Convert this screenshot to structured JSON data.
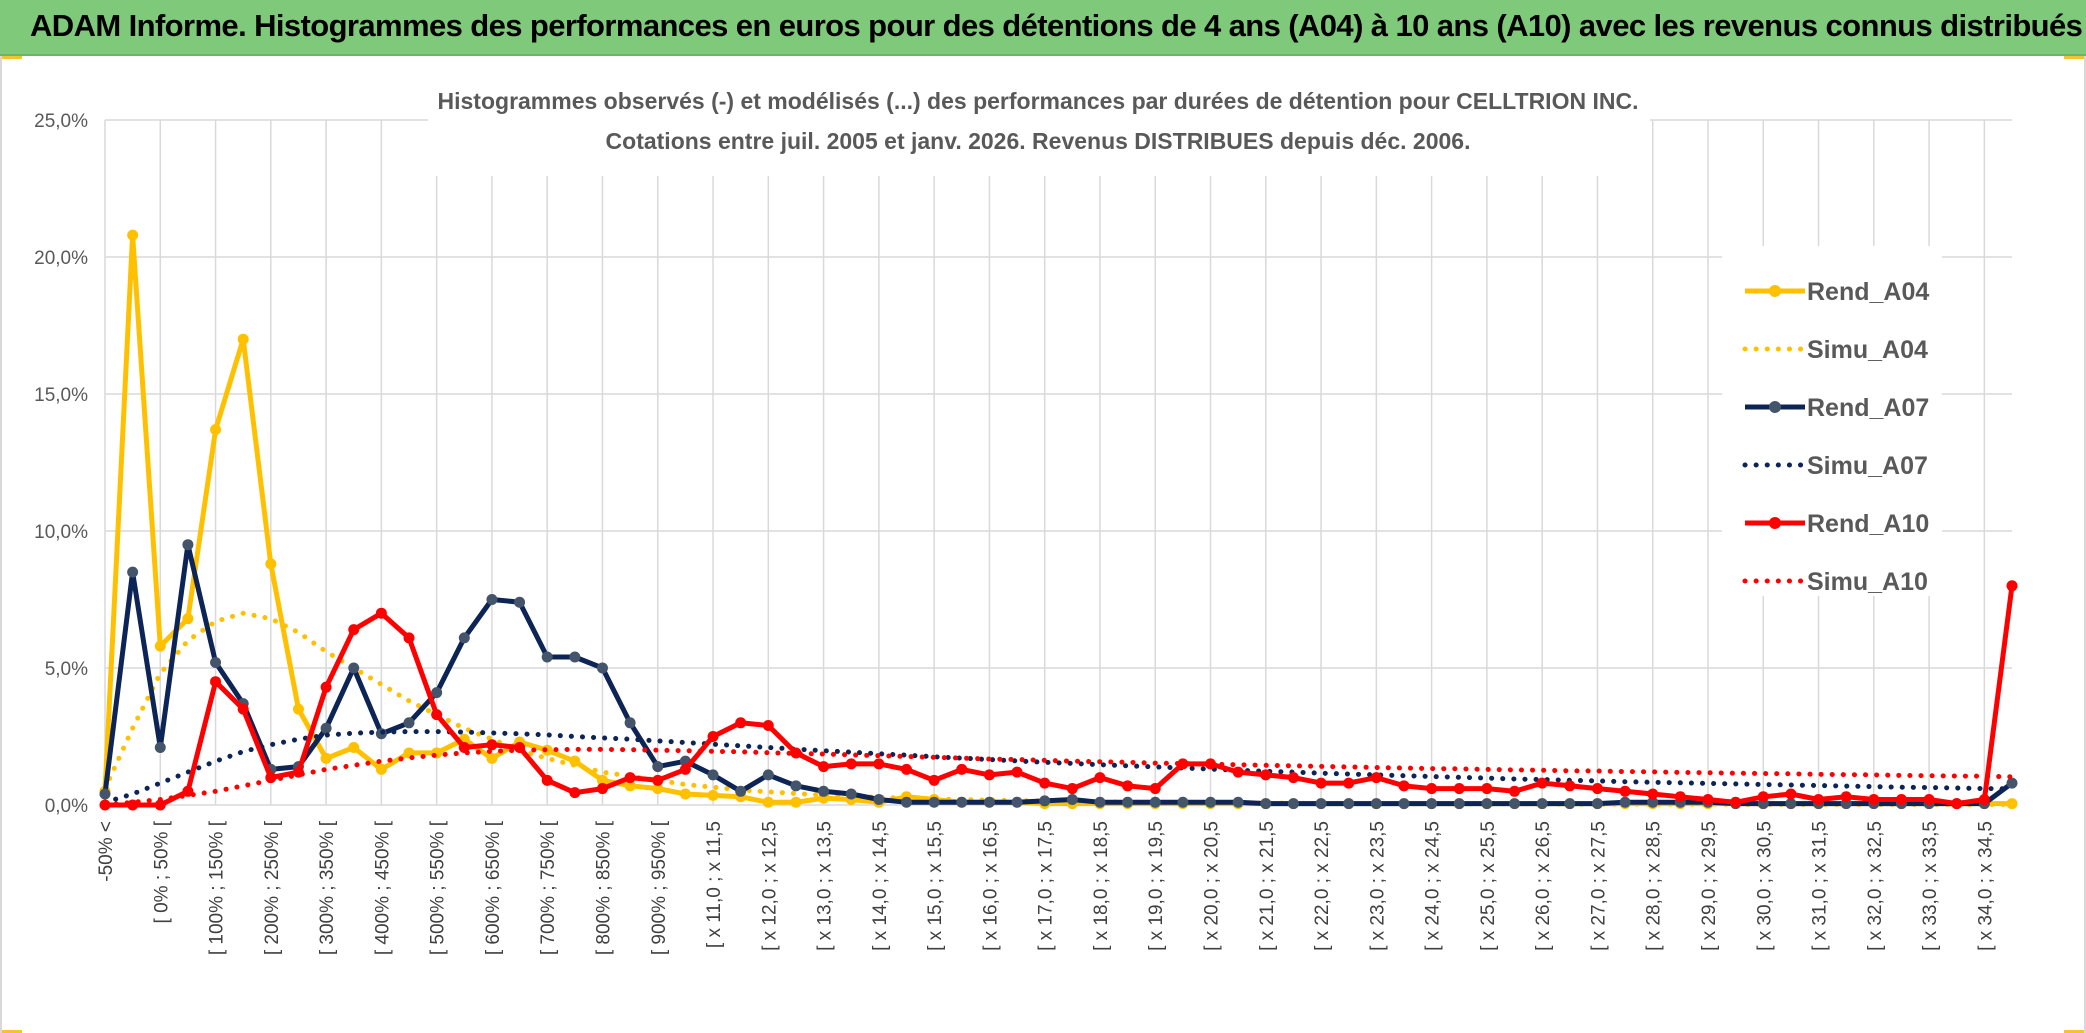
{
  "header": {
    "title": "ADAM Informe. Histogrammes des performances en euros pour des détentions de 4 ans (A04) à 10 ans (A10) avec les revenus connus distribués"
  },
  "chart_data": {
    "type": "line",
    "title": "Histogrammes observés (-) et modélisés (...) des performances par durées de détention pour CELLTRION INC.",
    "subtitle": "Cotations entre juil. 2005 et janv. 2026. Revenus DISTRIBUES depuis déc. 2006.",
    "xlabel": "",
    "ylabel": "",
    "ylim": [
      0,
      25
    ],
    "grid": true,
    "legend_position": "right",
    "y_ticks": [
      "0,0%",
      "5,0%",
      "10,0%",
      "15,0%",
      "20,0%",
      "25,0%"
    ],
    "x_tick_labels": [
      "-50% <",
      "[ 0% ; 50% [",
      "[ 100% ; 150% [",
      "[ 200% ; 250% [",
      "[ 300% ; 350% [",
      "[ 400% ; 450% [",
      "[ 500% ; 550% [",
      "[ 600% ; 650% [",
      "[ 700% ; 750% [",
      "[ 800% ; 850% [",
      "[ 900% ; 950% [",
      "[ x 11,0 ; x 11,5",
      "[ x 12,0 ; x 12,5",
      "[ x 13,0 ; x 13,5",
      "[ x 14,0 ; x 14,5",
      "[ x 15,0 ; x 15,5",
      "[ x 16,0 ; x 16,5",
      "[ x 17,0 ; x 17,5",
      "[ x 18,0 ; x 18,5",
      "[ x 19,0 ; x 19,5",
      "[ x 20,0 ; x 20,5",
      "[ x 21,0 ; x 21,5",
      "[ x 22,0 ; x 22,5",
      "[ x 23,0 ; x 23,5",
      "[ x 24,0 ; x 24,5",
      "[ x 25,0 ; x 25,5",
      "[ x 26,0 ; x 26,5",
      "[ x 27,0 ; x 27,5",
      "[ x 28,0 ; x 28,5",
      "[ x 29,0 ; x 29,5",
      "[ x 30,0 ; x 30,5",
      "[ x 31,0 ; x 31,5",
      "[ x 32,0 ; x 32,5",
      "[ x 33,0 ; x 33,5",
      "[ x 34,0 ; x 34,5"
    ],
    "series": [
      {
        "name": "Rend_A04",
        "color": "#ffc000",
        "style": "solid",
        "values": [
          0.5,
          20.8,
          5.8,
          6.8,
          13.7,
          17.0,
          8.8,
          3.5,
          1.7,
          2.1,
          1.3,
          1.9,
          1.9,
          2.4,
          1.7,
          2.3,
          2.0,
          1.6,
          0.9,
          0.7,
          0.6,
          0.4,
          0.35,
          0.3,
          0.1,
          0.1,
          0.25,
          0.2,
          0.1,
          0.3,
          0.2,
          0.1,
          0.1,
          0.1,
          0.05,
          0.05,
          0.05,
          0.05,
          0.05,
          0.05,
          0.05,
          0.05,
          0.05,
          0.05,
          0.05,
          0.05,
          0.05,
          0.05,
          0.05,
          0.05,
          0.05,
          0.05,
          0.05,
          0.05,
          0.05,
          0.05,
          0.05,
          0.05,
          0.05,
          0.05,
          0.05,
          0.05,
          0.05,
          0.05,
          0.05,
          0.05,
          0.05,
          0.05,
          0.05,
          0.05
        ]
      },
      {
        "name": "Simu_A04",
        "color": "#ffc000",
        "style": "dotted",
        "values": [
          0.6,
          2.8,
          4.8,
          6.0,
          6.7,
          7.0,
          6.8,
          6.3,
          5.6,
          5.0,
          4.4,
          3.8,
          3.3,
          2.8,
          2.4,
          2.0,
          1.7,
          1.45,
          1.2,
          1.05,
          0.9,
          0.75,
          0.65,
          0.55,
          0.48,
          0.42,
          0.36,
          0.32,
          0.28,
          0.25,
          0.22,
          0.2,
          0.18,
          0.16,
          0.14,
          0.13,
          0.12,
          0.11,
          0.1,
          0.09,
          0.08,
          0.08,
          0.07,
          0.07,
          0.06,
          0.06,
          0.05,
          0.05,
          0.05,
          0.04,
          0.04,
          0.04,
          0.04,
          0.03,
          0.03,
          0.03,
          0.03,
          0.03,
          0.03,
          0.02,
          0.02,
          0.02,
          0.02,
          0.02,
          0.02,
          0.02,
          0.02,
          0.02,
          0.02,
          0.02
        ]
      },
      {
        "name": "Rend_A07",
        "color": "#0d2456",
        "style": "solid",
        "values": [
          0.4,
          8.5,
          2.1,
          9.5,
          5.2,
          3.7,
          1.3,
          1.4,
          2.8,
          5.0,
          2.6,
          3.0,
          4.1,
          6.1,
          7.5,
          7.4,
          5.4,
          5.4,
          5.0,
          3.0,
          1.4,
          1.6,
          1.1,
          0.5,
          1.1,
          0.7,
          0.5,
          0.4,
          0.2,
          0.1,
          0.1,
          0.1,
          0.1,
          0.1,
          0.15,
          0.2,
          0.1,
          0.1,
          0.1,
          0.1,
          0.1,
          0.1,
          0.05,
          0.05,
          0.05,
          0.05,
          0.05,
          0.05,
          0.05,
          0.05,
          0.05,
          0.05,
          0.05,
          0.05,
          0.05,
          0.1,
          0.1,
          0.1,
          0.1,
          0.05,
          0.05,
          0.05,
          0.05,
          0.05,
          0.05,
          0.05,
          0.05,
          0.05,
          0.05,
          0.8
        ]
      },
      {
        "name": "Simu_A07",
        "color": "#0d2456",
        "style": "dotted",
        "values": [
          0.1,
          0.4,
          0.8,
          1.2,
          1.6,
          1.95,
          2.2,
          2.4,
          2.55,
          2.62,
          2.66,
          2.68,
          2.68,
          2.66,
          2.63,
          2.6,
          2.56,
          2.5,
          2.45,
          2.4,
          2.34,
          2.28,
          2.22,
          2.16,
          2.1,
          2.04,
          1.98,
          1.93,
          1.87,
          1.82,
          1.76,
          1.71,
          1.66,
          1.61,
          1.56,
          1.52,
          1.47,
          1.43,
          1.39,
          1.35,
          1.31,
          1.27,
          1.23,
          1.2,
          1.16,
          1.13,
          1.1,
          1.07,
          1.04,
          1.01,
          0.98,
          0.95,
          0.93,
          0.9,
          0.88,
          0.85,
          0.83,
          0.81,
          0.79,
          0.77,
          0.75,
          0.73,
          0.71,
          0.69,
          0.67,
          0.65,
          0.64,
          0.62,
          0.6,
          0.59
        ]
      },
      {
        "name": "Rend_A10",
        "color": "#ff0000",
        "style": "solid",
        "values": [
          0.0,
          0.0,
          0.0,
          0.5,
          4.5,
          3.5,
          1.0,
          1.2,
          4.3,
          6.4,
          7.0,
          6.1,
          3.3,
          2.1,
          2.2,
          2.1,
          0.9,
          0.45,
          0.6,
          1.0,
          0.9,
          1.3,
          2.5,
          3.0,
          2.9,
          1.9,
          1.4,
          1.5,
          1.5,
          1.3,
          0.9,
          1.3,
          1.1,
          1.2,
          0.8,
          0.6,
          1.0,
          0.7,
          0.6,
          1.5,
          1.5,
          1.2,
          1.1,
          1.0,
          0.8,
          0.8,
          1.0,
          0.7,
          0.6,
          0.6,
          0.6,
          0.5,
          0.8,
          0.7,
          0.6,
          0.5,
          0.4,
          0.3,
          0.2,
          0.1,
          0.3,
          0.4,
          0.2,
          0.3,
          0.2,
          0.2,
          0.2,
          0.05,
          0.2,
          8.0
        ]
      },
      {
        "name": "Simu_A10",
        "color": "#ff0000",
        "style": "dotted",
        "values": [
          0.0,
          0.1,
          0.2,
          0.35,
          0.5,
          0.7,
          0.9,
          1.1,
          1.3,
          1.45,
          1.6,
          1.72,
          1.82,
          1.9,
          1.96,
          2.0,
          2.02,
          2.03,
          2.03,
          2.02,
          2.0,
          1.98,
          1.96,
          1.94,
          1.91,
          1.88,
          1.86,
          1.83,
          1.8,
          1.77,
          1.74,
          1.71,
          1.68,
          1.66,
          1.63,
          1.6,
          1.58,
          1.56,
          1.53,
          1.51,
          1.49,
          1.47,
          1.45,
          1.43,
          1.41,
          1.39,
          1.37,
          1.35,
          1.33,
          1.32,
          1.3,
          1.28,
          1.27,
          1.25,
          1.24,
          1.22,
          1.21,
          1.19,
          1.18,
          1.16,
          1.15,
          1.14,
          1.12,
          1.11,
          1.1,
          1.08,
          1.07,
          1.06,
          1.05,
          1.03
        ]
      }
    ]
  }
}
